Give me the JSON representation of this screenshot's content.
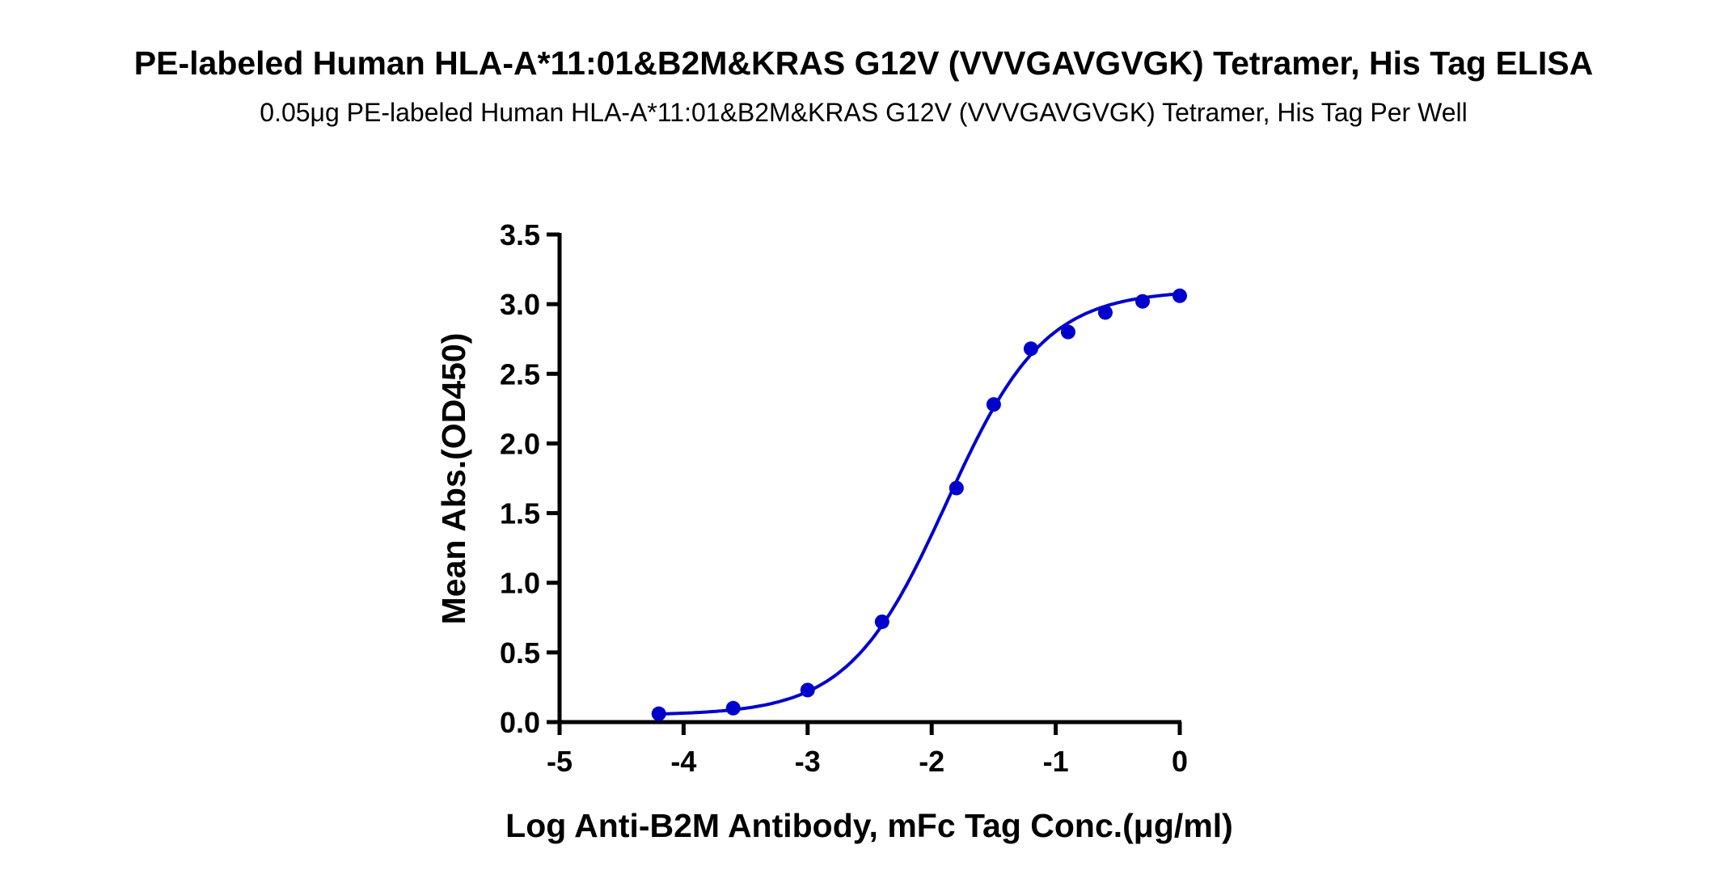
{
  "chart_data": {
    "type": "scatter",
    "title": "PE-labeled Human HLA-A*11:01&B2M&KRAS G12V (VVVGAVGVGK) Tetramer, His Tag ELISA",
    "subtitle": "0.05μg PE-labeled Human HLA-A*11:01&B2M&KRAS G12V (VVVGAVGVGK) Tetramer, His Tag Per Well",
    "xlabel": "Log  Anti-B2M Antibody, mFc Tag Conc.(μg/ml)",
    "ylabel": "Mean Abs.(OD450)",
    "xlim": [
      -5,
      0
    ],
    "ylim": [
      0,
      3.5
    ],
    "xticks": [
      "-5",
      "-4",
      "-3",
      "-2",
      "-1",
      "0"
    ],
    "yticks": [
      "0.0",
      "0.5",
      "1.0",
      "1.5",
      "2.0",
      "2.5",
      "3.0",
      "3.5"
    ],
    "grid": false,
    "fit_curve": "sigmoidal",
    "color": "#0000CC",
    "points": [
      {
        "x": -4.2,
        "y": 0.06
      },
      {
        "x": -3.6,
        "y": 0.1
      },
      {
        "x": -3.0,
        "y": 0.23
      },
      {
        "x": -2.4,
        "y": 0.72
      },
      {
        "x": -1.8,
        "y": 1.68
      },
      {
        "x": -1.5,
        "y": 2.28
      },
      {
        "x": -1.2,
        "y": 2.68
      },
      {
        "x": -0.9,
        "y": 2.8
      },
      {
        "x": -0.6,
        "y": 2.94
      },
      {
        "x": -0.3,
        "y": 3.02
      },
      {
        "x": 0.0,
        "y": 3.06
      }
    ]
  }
}
